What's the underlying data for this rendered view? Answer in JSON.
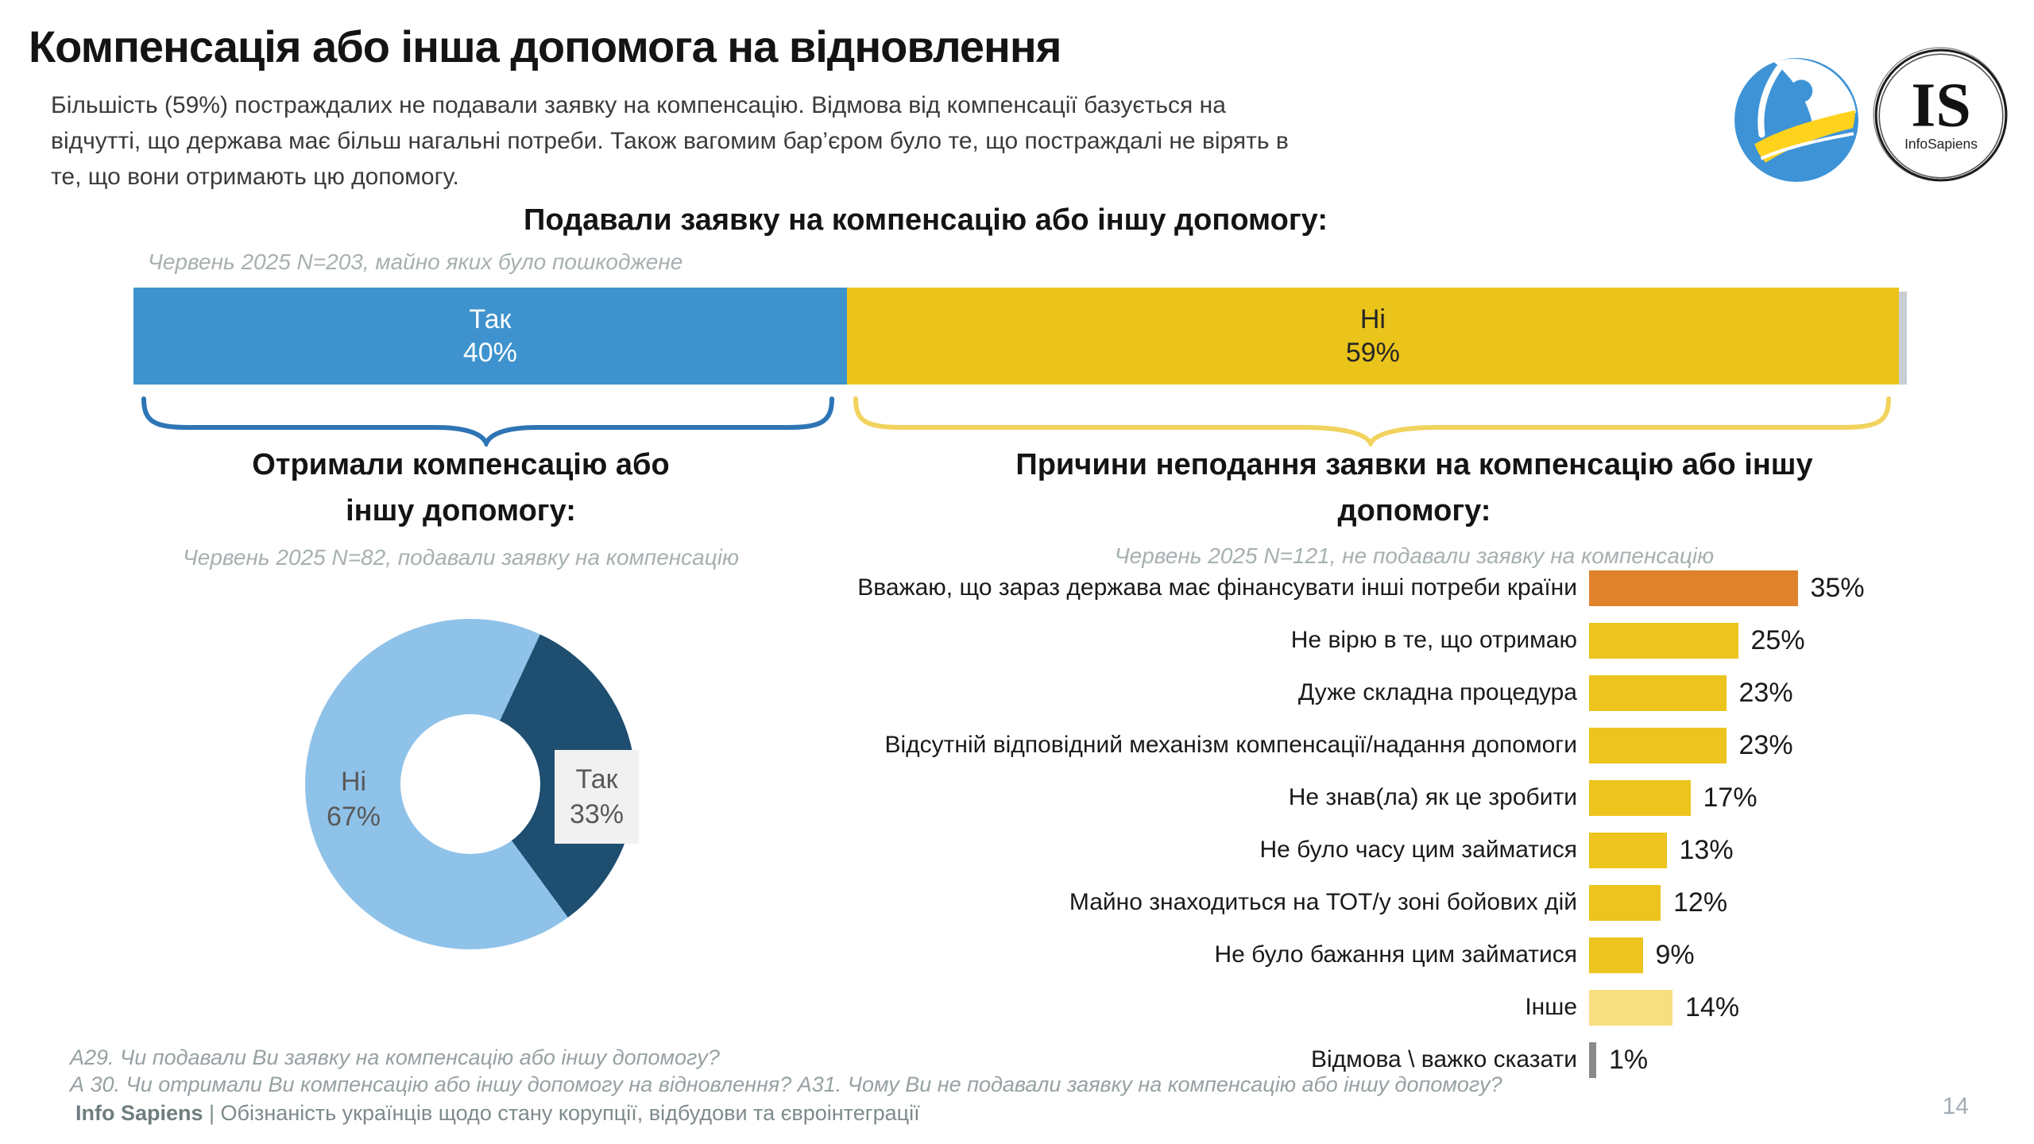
{
  "slide": {
    "title": "Компенсація або інша допомога на відновлення",
    "intro_lines": [
      "Більшість (59%) постраждалих не подавали заявку на компенсацію. Відмова від компенсації базується на",
      "відчутті, що держава має більш нагальні потреби. Також вагомим бар’єром було те, що постраждалі не вірять в",
      "те, що вони отримають цю допомогу."
    ],
    "page_number": "14"
  },
  "logos": {
    "globe_icon": "info-sapiens-globe-logo",
    "is_initials": "IS",
    "is_name": "InfoSapiens"
  },
  "footer": {
    "question_line1": "А29. Чи подавали Ви заявку на компенсацію або іншу допомогу?",
    "question_line2": "А 30. Чи отримали Ви компенсацію або іншу допомогу на відновлення? А31. Чому Ви не подавали заявку на компенсацію або іншу допомогу?",
    "brand": "Info Sapiens",
    "brand_suffix": " | Обізнаність українців щодо стану корупції, відбудови та євроінтеграції"
  },
  "colors": {
    "bar_blue": "#3e93ce",
    "bar_yellow": "#eac41b",
    "orange": "#e0812c",
    "light_yellow": "#f6df80",
    "gray_bar": "#8a8a8a",
    "navy": "#1e4e70",
    "light_blue": "#8fc2e9",
    "brace_blue": "#2e75b6",
    "brace_yellow": "#f1d35e"
  },
  "chart_data": [
    {
      "id": "applied_for_compensation",
      "type": "bar",
      "subtype": "stacked-horizontal-100pct",
      "title": "Подавали заявку на компенсацію або іншу допомогу:",
      "note": "Червень 2025 N=203, майно яких було пошкоджене",
      "categories": [
        "Так",
        "Ні"
      ],
      "values": [
        40,
        59
      ],
      "pct_labels": [
        "40%",
        "59%"
      ],
      "colors": [
        "#3e93ce",
        "#eac41b"
      ],
      "grid": false,
      "legend": "none"
    },
    {
      "id": "received_compensation",
      "type": "pie",
      "subtype": "donut",
      "title": "Отримали компенсацію або іншу допомогу:",
      "title_lines": [
        "Отримали компенсацію або",
        "іншу допомогу:"
      ],
      "note": "Червень 2025 N=82, подавали заявку на компенсацію",
      "categories": [
        "Так",
        "Ні"
      ],
      "values": [
        33,
        67
      ],
      "pct_labels": [
        "33%",
        "67%"
      ],
      "colors": [
        "#1e4e70",
        "#8fc2e9"
      ],
      "start_angle_deg": 25,
      "legend": "none"
    },
    {
      "id": "reasons_not_applying",
      "type": "bar",
      "subtype": "horizontal",
      "title": "Причини неподання заявки на компенсацію або іншу допомогу:",
      "title_lines": [
        "Причини неподання заявки на компенсацію або іншу",
        "допомогу:"
      ],
      "note": "Червень 2025 N=121, не подавали заявку на компенсацію",
      "categories": [
        "Вважаю, що зараз держава має фінансувати інші потреби країни",
        "Не вірю в те, що отримаю",
        "Дуже складна процедура",
        "Відсутній відповідний механізм компенсації/надання допомоги",
        "Не знав(ла) як це зробити",
        "Не було часу цим займатися",
        "Майно знаходиться на ТОТ/у зоні бойових дій",
        "Не було бажання цим займатися",
        "Інше",
        "Відмова \\ важко сказати"
      ],
      "values": [
        35,
        25,
        23,
        23,
        17,
        13,
        12,
        9,
        14,
        1
      ],
      "value_labels": [
        "35%",
        "25%",
        "23%",
        "23%",
        "17%",
        "13%",
        "12%",
        "9%",
        "14%",
        "1%"
      ],
      "colors": [
        "#e0812c",
        "#ecc41d",
        "#ecc41d",
        "#ecc41d",
        "#ecc41d",
        "#ecc41d",
        "#ecc41d",
        "#ecc41d",
        "#f6df80",
        "#8a8a8a"
      ],
      "value_axis_max": 40,
      "grid": false,
      "legend": "none"
    }
  ]
}
